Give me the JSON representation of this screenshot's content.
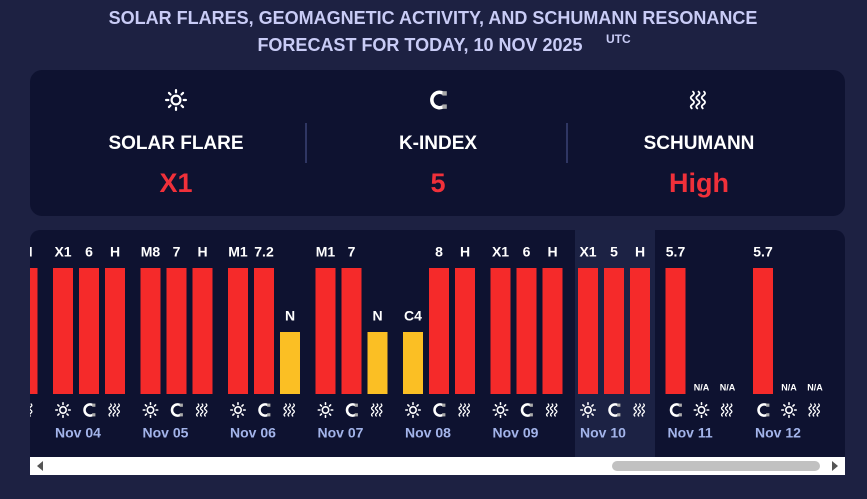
{
  "header": {
    "title_line1": "SOLAR FLARES, GEOMAGNETIC ACTIVITY, AND SCHUMANN RESONANCE",
    "title_line2": "FORECAST FOR TODAY, 10 NOV 2025",
    "title_superscript": "UTC"
  },
  "stats": [
    {
      "kind": "flare",
      "label": "SOLAR FLARE",
      "value": "X1"
    },
    {
      "kind": "kindex",
      "label": "K-INDEX",
      "value": "5"
    },
    {
      "kind": "schumann",
      "label": "SCHUMANN",
      "value": "High"
    }
  ],
  "colors": {
    "high": "#f52a2a",
    "low": "#fbbf24"
  },
  "days": [
    {
      "date": null,
      "items": [
        {
          "kind": "schumann",
          "label": "H",
          "level": "high"
        }
      ]
    },
    {
      "date": "Nov 04",
      "items": [
        {
          "kind": "flare",
          "label": "X1",
          "level": "high"
        },
        {
          "kind": "kindex",
          "label": "6",
          "level": "high"
        },
        {
          "kind": "schumann",
          "label": "H",
          "level": "high"
        }
      ]
    },
    {
      "date": "Nov 05",
      "items": [
        {
          "kind": "flare",
          "label": "M8",
          "level": "high"
        },
        {
          "kind": "kindex",
          "label": "7",
          "level": "high"
        },
        {
          "kind": "schumann",
          "label": "H",
          "level": "high"
        }
      ]
    },
    {
      "date": "Nov 06",
      "items": [
        {
          "kind": "flare",
          "label": "M1",
          "level": "high"
        },
        {
          "kind": "kindex",
          "label": "7.2",
          "level": "high"
        },
        {
          "kind": "schumann",
          "label": "N",
          "level": "low"
        }
      ]
    },
    {
      "date": "Nov 07",
      "items": [
        {
          "kind": "flare",
          "label": "M1",
          "level": "high"
        },
        {
          "kind": "kindex",
          "label": "7",
          "level": "high"
        },
        {
          "kind": "schumann",
          "label": "N",
          "level": "low"
        }
      ]
    },
    {
      "date": "Nov 08",
      "items": [
        {
          "kind": "flare",
          "label": "C4",
          "level": "low"
        },
        {
          "kind": "kindex",
          "label": "8",
          "level": "high"
        },
        {
          "kind": "schumann",
          "label": "H",
          "level": "high"
        }
      ]
    },
    {
      "date": "Nov 09",
      "items": [
        {
          "kind": "flare",
          "label": "X1",
          "level": "high"
        },
        {
          "kind": "kindex",
          "label": "6",
          "level": "high"
        },
        {
          "kind": "schumann",
          "label": "H",
          "level": "high"
        }
      ]
    },
    {
      "date": "Nov 10",
      "highlight": true,
      "items": [
        {
          "kind": "flare",
          "label": "X1",
          "level": "high"
        },
        {
          "kind": "kindex",
          "label": "5",
          "level": "high"
        },
        {
          "kind": "schumann",
          "label": "H",
          "level": "high"
        }
      ]
    },
    {
      "date": "Nov 11",
      "items": [
        {
          "kind": "kindex",
          "label": "5.7",
          "level": "high"
        },
        {
          "kind": "flare",
          "label": "N/A",
          "level": null
        },
        {
          "kind": "schumann",
          "label": "N/A",
          "level": null
        }
      ]
    },
    {
      "date": "Nov 12",
      "items": [
        {
          "kind": "kindex",
          "label": "5.7",
          "level": "high"
        },
        {
          "kind": "flare",
          "label": "N/A",
          "level": null
        },
        {
          "kind": "schumann",
          "label": "N/A",
          "level": null
        }
      ]
    }
  ]
}
